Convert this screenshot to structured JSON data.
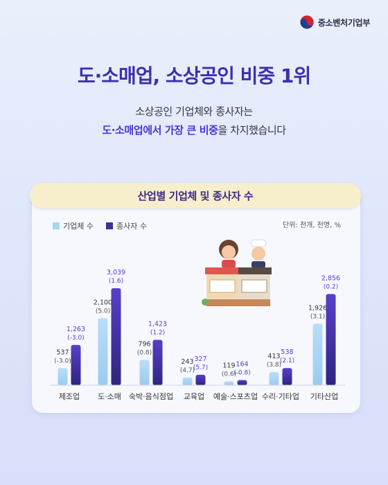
{
  "header": {
    "org_name": "중소벤처기업부"
  },
  "headline": "도·소매업, 소상공인 비중 1위",
  "subtitle": {
    "line1": "소상공인 기업체와 종사자는",
    "line2_highlight": "도·소매업에서 가장 큰 비중",
    "line2_rest": "을 차지했습니다"
  },
  "colors": {
    "business": "#a9d4f5",
    "worker": "#3d2f9c",
    "title": "#3c2fae"
  },
  "chart_data": {
    "type": "bar",
    "title": "산업별 기업체 및 종사자 수",
    "unit": "단위: 천개, 천명, %",
    "categories": [
      "제조업",
      "도·소매",
      "숙박·음식점업",
      "교육업",
      "예술·스포츠업",
      "수리·기타업",
      "기타산업"
    ],
    "series": [
      {
        "name": "기업체 수",
        "values": [
          537,
          2100,
          796,
          243,
          119,
          413,
          1926
        ],
        "labels": [
          "537",
          "2,100",
          "796",
          "243",
          "119",
          "413",
          "1,926"
        ],
        "changes": [
          "(-3.0)",
          "(5.0)",
          "(0.8)",
          "(4.7)",
          "(0.6)",
          "(3.8)",
          "(3.1)"
        ]
      },
      {
        "name": "종사자 수",
        "values": [
          1263,
          3039,
          1423,
          327,
          164,
          538,
          2856
        ],
        "labels": [
          "1,263",
          "3,039",
          "1,423",
          "327",
          "164",
          "538",
          "2,856"
        ],
        "changes": [
          "(-3.0)",
          "(1.6)",
          "(1.2)",
          "(5.7)",
          "(-0.8)",
          "(2.1)",
          "(0.2)"
        ]
      }
    ],
    "ylim": [
      0,
      3200
    ],
    "legend": "top-left",
    "grid": false
  }
}
